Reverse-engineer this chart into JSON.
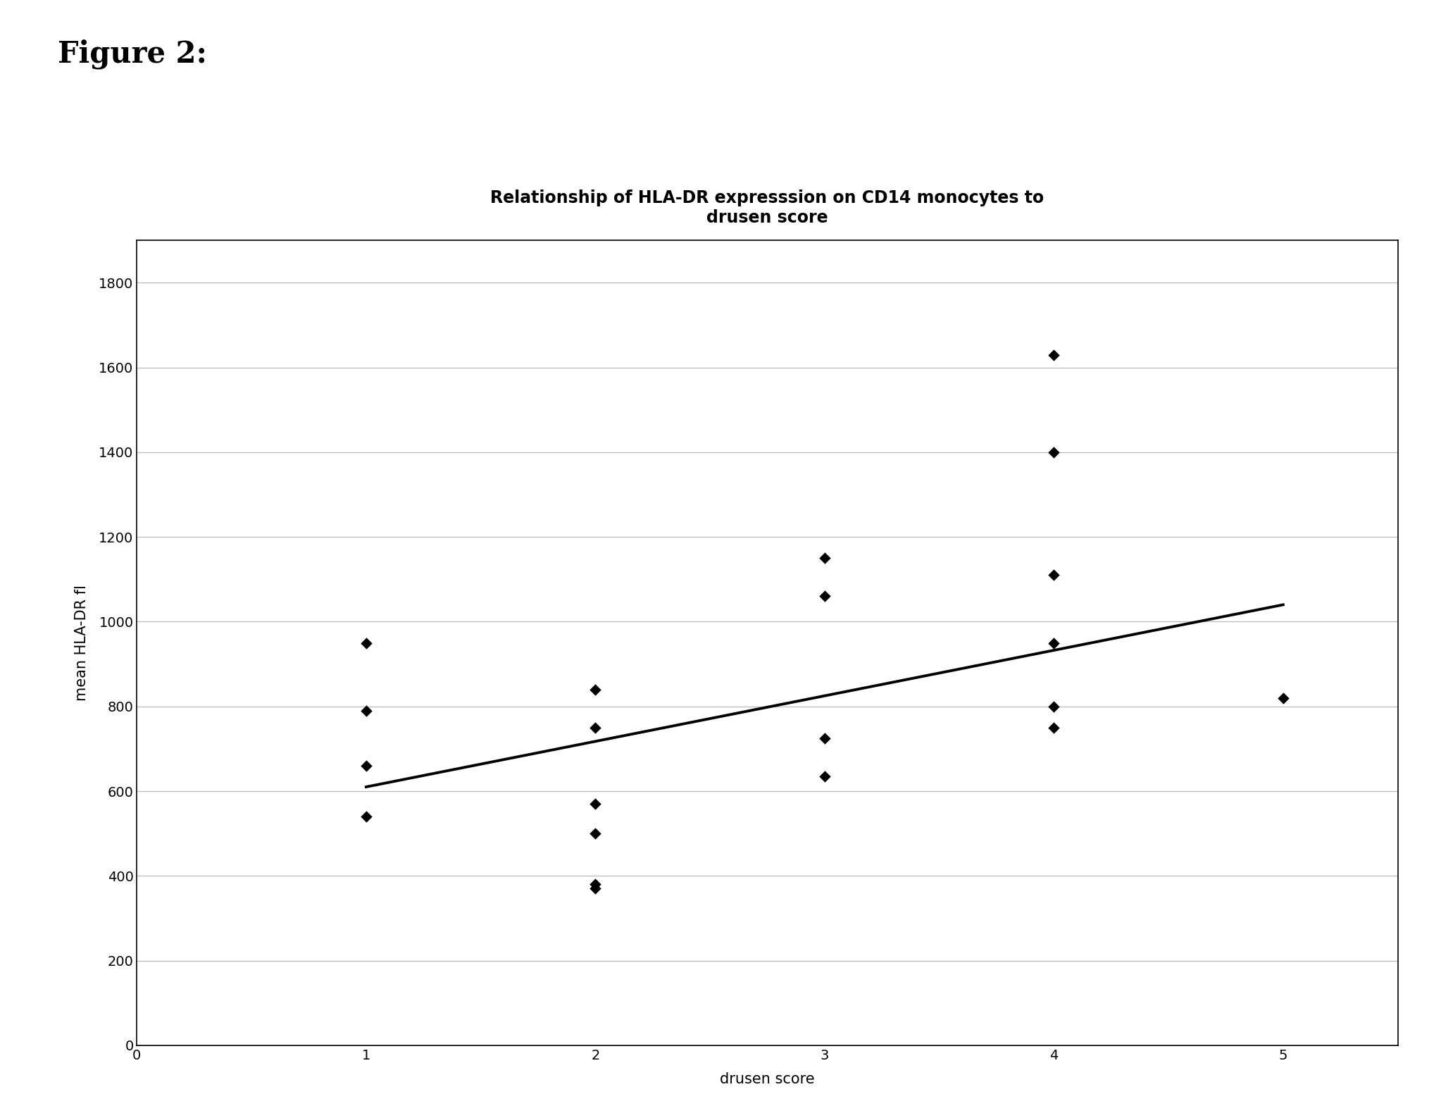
{
  "title_line1": "Relationship of HLA-DR expresssion on CD14 monocytes to",
  "title_line2": "drusen score",
  "xlabel": "drusen score",
  "ylabel": "mean HLA-DR fl",
  "figure_label": "Figure 2:",
  "scatter_x": [
    1,
    1,
    1,
    1,
    2,
    2,
    2,
    2,
    2,
    2,
    3,
    3,
    3,
    3,
    4,
    4,
    4,
    4,
    4,
    4,
    5
  ],
  "scatter_y": [
    950,
    790,
    660,
    540,
    840,
    750,
    570,
    500,
    380,
    370,
    1150,
    1060,
    725,
    635,
    1630,
    1400,
    1110,
    950,
    800,
    750,
    820
  ],
  "trendline_x": [
    1,
    5
  ],
  "trendline_y": [
    610,
    1040
  ],
  "xlim": [
    0,
    5.5
  ],
  "ylim": [
    0,
    1900
  ],
  "yticks": [
    0,
    200,
    400,
    600,
    800,
    1000,
    1200,
    1400,
    1600,
    1800
  ],
  "xticks": [
    0,
    1,
    2,
    3,
    4,
    5
  ],
  "marker_color": "#000000",
  "trendline_color": "#000000",
  "background_color": "#ffffff",
  "title_fontsize": 17,
  "axis_label_fontsize": 15,
  "tick_fontsize": 14,
  "figure_label_fontsize": 30,
  "grid_color": "#bbbbbb"
}
